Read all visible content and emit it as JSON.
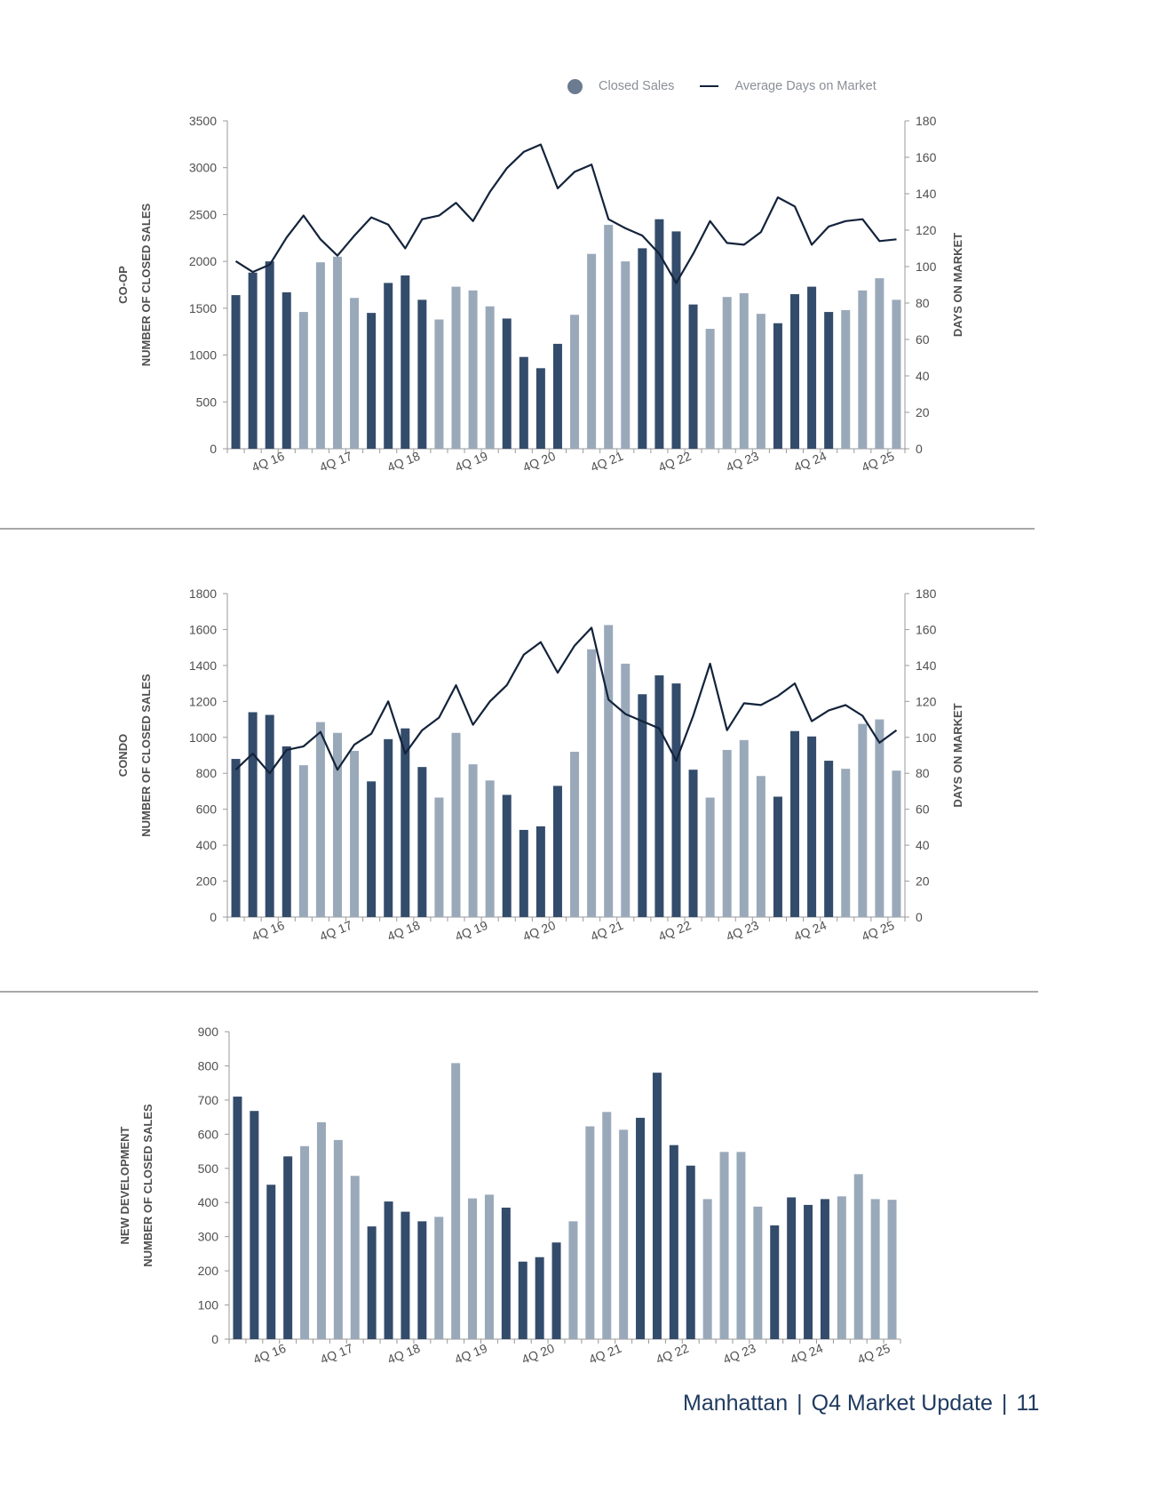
{
  "legend": {
    "closed_sales_label": "Closed Sales",
    "dom_label": "Average Days on Market",
    "closed_sales_color": "#6b7b90",
    "dom_color": "#13233b"
  },
  "colors": {
    "dark_bar": "#344c6b",
    "light_bar": "#9aa9ba",
    "line": "#13233b",
    "axis": "#9a9a9a",
    "text": "#4f4f4f"
  },
  "footer": {
    "market": "Manhattan",
    "title": "Q4 Market Update",
    "page": "11",
    "separator": "|"
  },
  "chart_data": [
    {
      "type": "bar",
      "category_label": "CO-OP",
      "ylabel": "NUMBER OF CLOSED SALES",
      "y2label": "DAYS ON MARKET",
      "ylim": [
        0,
        3500
      ],
      "yticks": [
        0,
        500,
        1000,
        1500,
        2000,
        2500,
        3000,
        3500
      ],
      "y2lim": [
        0,
        180
      ],
      "y2ticks": [
        0,
        20,
        40,
        60,
        80,
        100,
        120,
        140,
        160,
        180
      ],
      "tick_labels": [
        "4Q 16",
        "4Q 17",
        "4Q 18",
        "4Q 19",
        "4Q 20",
        "4Q 21",
        "4Q 22",
        "4Q 23",
        "4Q 24",
        "4Q 25"
      ],
      "series": [
        {
          "values": [
            1640,
            1880,
            2000,
            1670,
            1460,
            1990,
            2050,
            1610,
            1450,
            1770,
            1850,
            1590,
            1380,
            1730,
            1690,
            1520,
            1390,
            980,
            860,
            1120,
            1430,
            2080,
            2390,
            2000,
            2140,
            2450,
            2320,
            1540,
            1280,
            1620,
            1660,
            1440,
            1340,
            1650,
            1730,
            1460,
            1480,
            1690,
            1820,
            1590
          ]
        },
        {
          "values": [
            103,
            97,
            101,
            116,
            128,
            115,
            106,
            117,
            127,
            123,
            110,
            126,
            128,
            135,
            125,
            141,
            154,
            163,
            167,
            143,
            152,
            156,
            126,
            121,
            117,
            107,
            91,
            107,
            125,
            113,
            112,
            119,
            138,
            133,
            112,
            122,
            125,
            126,
            114,
            115
          ]
        }
      ]
    },
    {
      "type": "bar",
      "category_label": "CONDO",
      "ylabel": "NUMBER OF CLOSED SALES",
      "y2label": "DAYS ON MARKET",
      "ylim": [
        0,
        1800
      ],
      "yticks": [
        0,
        200,
        400,
        600,
        800,
        1000,
        1200,
        1400,
        1600,
        1800
      ],
      "y2lim": [
        0,
        180
      ],
      "y2ticks": [
        0,
        20,
        40,
        60,
        80,
        100,
        120,
        140,
        160,
        180
      ],
      "tick_labels": [
        "4Q 16",
        "4Q 17",
        "4Q 18",
        "4Q 19",
        "4Q 20",
        "4Q 21",
        "4Q 22",
        "4Q 23",
        "4Q 24",
        "4Q 25"
      ],
      "series": [
        {
          "values": [
            880,
            1140,
            1125,
            950,
            845,
            1085,
            1025,
            925,
            755,
            990,
            1050,
            835,
            665,
            1025,
            850,
            760,
            680,
            485,
            505,
            730,
            920,
            1490,
            1625,
            1410,
            1240,
            1345,
            1300,
            820,
            665,
            930,
            985,
            785,
            670,
            1035,
            1005,
            870,
            825,
            1075,
            1100,
            815
          ]
        },
        {
          "values": [
            82,
            91,
            80,
            93,
            95,
            103,
            82,
            96,
            102,
            120,
            91,
            104,
            111,
            129,
            107,
            120,
            129,
            146,
            153,
            136,
            151,
            161,
            121,
            113,
            109,
            105,
            87,
            112,
            141,
            104,
            119,
            118,
            123,
            130,
            109,
            115,
            118,
            112,
            97,
            104
          ]
        }
      ]
    },
    {
      "type": "bar",
      "category_label": "NEW DEVELOPMENT",
      "ylabel": "NUMBER OF CLOSED SALES",
      "ylim": [
        0,
        900
      ],
      "yticks": [
        0,
        100,
        200,
        300,
        400,
        500,
        600,
        700,
        800,
        900
      ],
      "tick_labels": [
        "4Q 16",
        "4Q 17",
        "4Q 18",
        "4Q 19",
        "4Q 20",
        "4Q 21",
        "4Q 22",
        "4Q 23",
        "4Q 24",
        "4Q 25"
      ],
      "series": [
        {
          "values": [
            710,
            668,
            452,
            535,
            565,
            635,
            583,
            478,
            330,
            403,
            373,
            345,
            358,
            808,
            412,
            423,
            385,
            227,
            240,
            283,
            345,
            623,
            665,
            613,
            648,
            780,
            568,
            508,
            410,
            548,
            548,
            388,
            333,
            415,
            393,
            410,
            418,
            483,
            410,
            408
          ]
        }
      ]
    }
  ],
  "bar_shades": [
    "dark",
    "dark",
    "dark",
    "dark",
    "light",
    "light",
    "light",
    "light",
    "dark",
    "dark",
    "dark",
    "dark",
    "light",
    "light",
    "light",
    "light",
    "dark",
    "dark",
    "dark",
    "dark",
    "light",
    "light",
    "light",
    "light",
    "dark",
    "dark",
    "dark",
    "dark",
    "light",
    "light",
    "light",
    "light",
    "dark",
    "dark",
    "dark",
    "dark",
    "light",
    "light",
    "light",
    "light"
  ]
}
